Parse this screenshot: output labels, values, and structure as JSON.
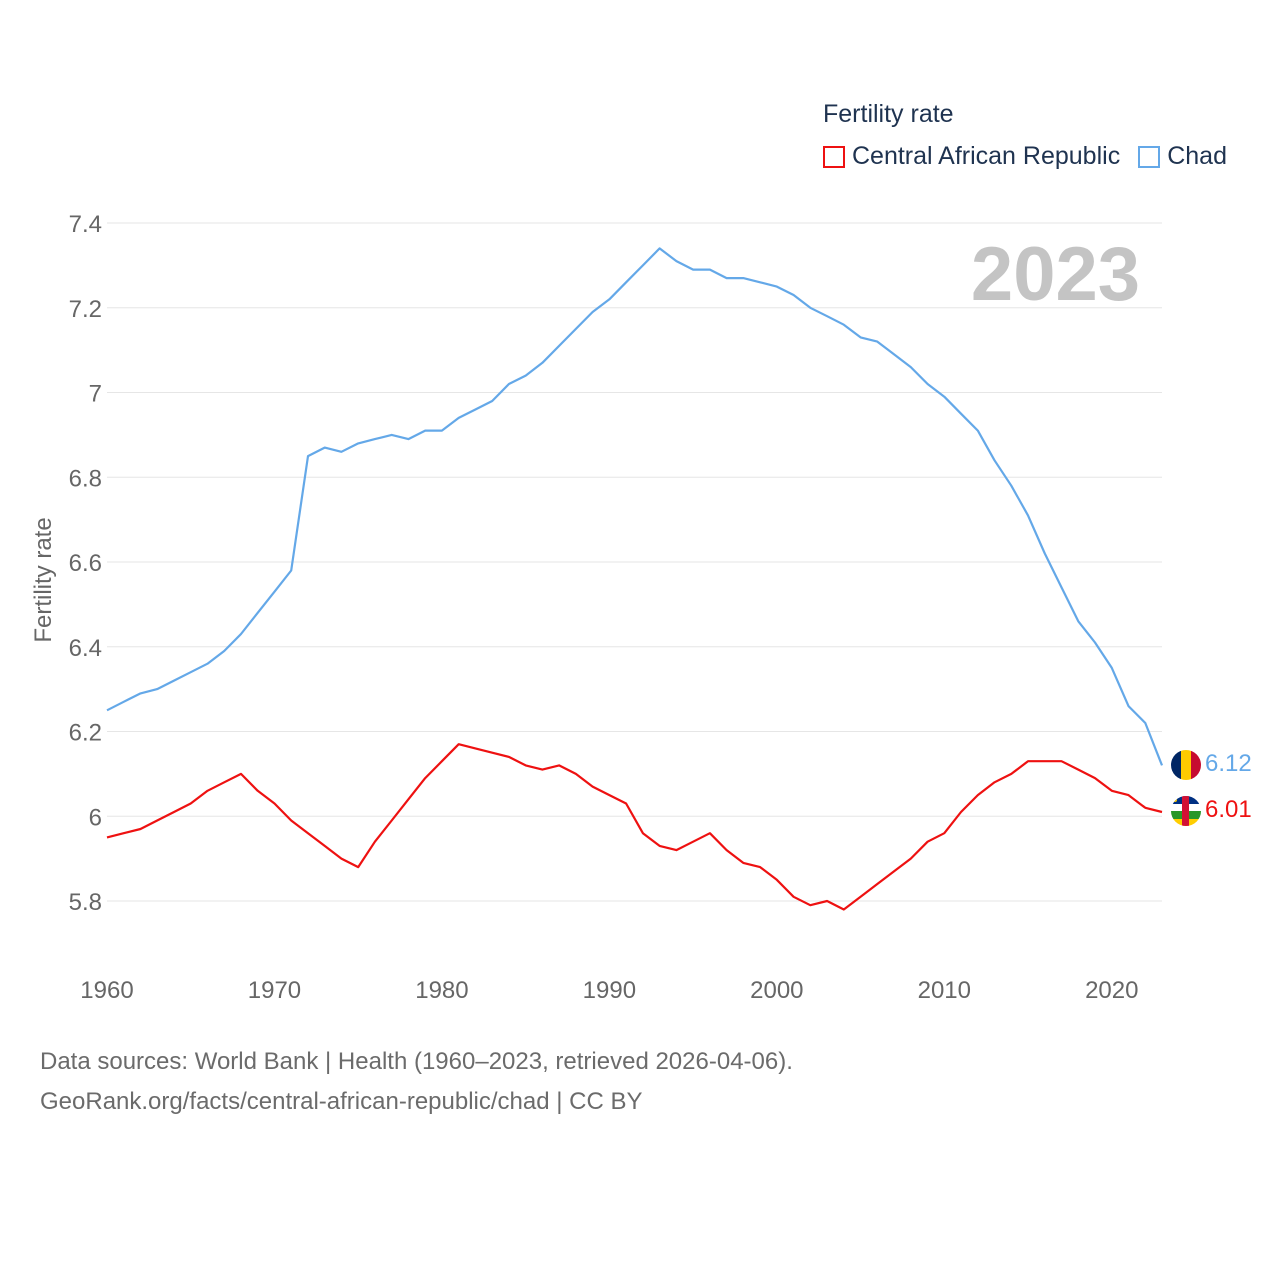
{
  "legend": {
    "title": "Fertility rate",
    "items": [
      {
        "label": "Central African Republic",
        "color": "#ee1111"
      },
      {
        "label": "Chad",
        "color": "#64a8e8"
      }
    ]
  },
  "footer": {
    "line1": "Data sources: World Bank | Health (1960–2023, retrieved 2026-04-06).",
    "line2": "GeoRank.org/facts/central-african-republic/chad | CC BY"
  },
  "chart_data": {
    "type": "line",
    "title": "Fertility rate",
    "year_label": "2023",
    "xlabel": "",
    "ylabel": "Fertility rate",
    "xlim": [
      1960,
      2023
    ],
    "ylim": [
      5.7,
      7.45
    ],
    "x_ticks": [
      1960,
      1970,
      1980,
      1990,
      2000,
      2010,
      2020
    ],
    "y_ticks": [
      5.8,
      6,
      6.2,
      6.4,
      6.6,
      6.8,
      7,
      7.2,
      7.4
    ],
    "y_tick_labels": [
      "5.8",
      "6",
      "6.2",
      "6.4",
      "6.6",
      "6.8",
      "7",
      "7.2",
      "7.4"
    ],
    "x": [
      1960,
      1961,
      1962,
      1963,
      1964,
      1965,
      1966,
      1967,
      1968,
      1969,
      1970,
      1971,
      1972,
      1973,
      1974,
      1975,
      1976,
      1977,
      1978,
      1979,
      1980,
      1981,
      1982,
      1983,
      1984,
      1985,
      1986,
      1987,
      1988,
      1989,
      1990,
      1991,
      1992,
      1993,
      1994,
      1995,
      1996,
      1997,
      1998,
      1999,
      2000,
      2001,
      2002,
      2003,
      2004,
      2005,
      2006,
      2007,
      2008,
      2009,
      2010,
      2011,
      2012,
      2013,
      2014,
      2015,
      2016,
      2017,
      2018,
      2019,
      2020,
      2021,
      2022,
      2023
    ],
    "series": [
      {
        "name": "Central African Republic",
        "color": "#ee1111",
        "end_label": "6.01",
        "values": [
          5.95,
          5.96,
          5.97,
          5.99,
          6.01,
          6.03,
          6.06,
          6.08,
          6.1,
          6.06,
          6.03,
          5.99,
          5.96,
          5.93,
          5.9,
          5.88,
          5.94,
          5.99,
          6.04,
          6.09,
          6.13,
          6.17,
          6.16,
          6.15,
          6.14,
          6.12,
          6.11,
          6.12,
          6.1,
          6.07,
          6.05,
          6.03,
          5.96,
          5.93,
          5.92,
          5.94,
          5.96,
          5.92,
          5.89,
          5.88,
          5.85,
          5.81,
          5.79,
          5.8,
          5.78,
          5.81,
          5.84,
          5.87,
          5.9,
          5.94,
          5.96,
          6.01,
          6.05,
          6.08,
          6.1,
          6.13,
          6.13,
          6.13,
          6.11,
          6.09,
          6.06,
          6.05,
          6.02,
          6.01
        ]
      },
      {
        "name": "Chad",
        "color": "#64a8e8",
        "end_label": "6.12",
        "values": [
          6.25,
          6.27,
          6.29,
          6.3,
          6.32,
          6.34,
          6.36,
          6.39,
          6.43,
          6.48,
          6.53,
          6.58,
          6.85,
          6.87,
          6.86,
          6.88,
          6.89,
          6.9,
          6.89,
          6.91,
          6.91,
          6.94,
          6.96,
          6.98,
          7.02,
          7.04,
          7.07,
          7.11,
          7.15,
          7.19,
          7.22,
          7.26,
          7.3,
          7.34,
          7.31,
          7.29,
          7.29,
          7.27,
          7.27,
          7.26,
          7.25,
          7.23,
          7.2,
          7.18,
          7.16,
          7.13,
          7.12,
          7.09,
          7.06,
          7.02,
          6.99,
          6.95,
          6.91,
          6.84,
          6.78,
          6.71,
          6.62,
          6.54,
          6.46,
          6.41,
          6.35,
          6.26,
          6.22,
          6.12
        ]
      }
    ]
  }
}
